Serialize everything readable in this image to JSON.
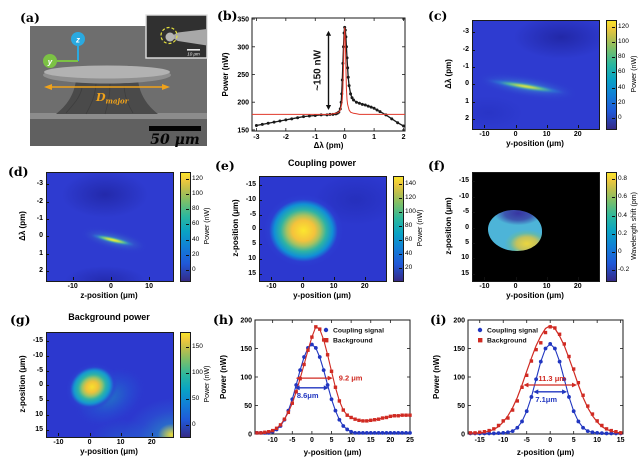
{
  "figure": {
    "background": "#ffffff"
  },
  "colors": {
    "series_blue": "#2136c0",
    "series_red": "#d02a22",
    "fit_red": "#e0392b",
    "data_black": "#1a1a1a",
    "dimension_orange": "#f0a21a",
    "axis_z_blue": "#2aa9e0",
    "axis_y_green": "#7cc244"
  },
  "chart_data": [
    {
      "id": "a",
      "type": "sem-image",
      "label": "(a)",
      "labels": {
        "diameter_main": "D",
        "diameter_sub": "major",
        "scalebar": "50 μm",
        "inset_scalebar": "10 μm",
        "axis_vertical": "z",
        "axis_horizontal": "y"
      },
      "features": "SEM side view of microdisk resonator on pedestal; inset: lensed fiber tip circled"
    },
    {
      "id": "b",
      "type": "scatter",
      "label": "(b)",
      "xlabel": "Δλ (pm)",
      "ylabel": "Power (nW)",
      "xlim": [
        -3.15,
        2.05
      ],
      "ylim": [
        148,
        352
      ],
      "xticks": [
        -3,
        -2,
        -1,
        0,
        1,
        2
      ],
      "yticks": [
        150,
        200,
        250,
        300,
        350
      ],
      "series": [
        {
          "name": "measured",
          "color": "#1a1a1a",
          "marker": "circle",
          "msize": 1.5,
          "width": 1.3,
          "x": [
            -3,
            -2.8,
            -2.6,
            -2.4,
            -2.2,
            -2,
            -1.8,
            -1.6,
            -1.4,
            -1.2,
            -1,
            -0.8,
            -0.6,
            -0.5,
            -0.4,
            -0.3,
            -0.25,
            -0.2,
            -0.15,
            -0.12,
            -0.1,
            -0.08,
            -0.06,
            -0.04,
            -0.02,
            0,
            0.02,
            0.04,
            0.06,
            0.08,
            0.1,
            0.12,
            0.15,
            0.2,
            0.25,
            0.3,
            0.4,
            0.5,
            0.6,
            0.7,
            0.8,
            0.9,
            1,
            1.1,
            1.2,
            1.4,
            1.6,
            1.8,
            2
          ],
          "y": [
            158,
            160,
            162,
            164,
            166,
            168,
            170,
            172,
            174,
            175,
            176,
            177,
            177,
            178,
            178,
            179,
            180,
            182,
            188,
            200,
            215,
            240,
            270,
            300,
            325,
            335,
            330,
            318,
            300,
            280,
            262,
            245,
            230,
            215,
            208,
            204,
            200,
            198,
            196,
            195,
            193,
            191,
            189,
            186,
            183,
            177,
            170,
            163,
            157
          ]
        },
        {
          "name": "lorentzian-fit",
          "color": "#e0392b",
          "marker": null,
          "width": 1,
          "x": [
            -3.15,
            -1,
            -0.5,
            -0.4,
            -0.3,
            -0.2,
            -0.15,
            -0.1,
            -0.08,
            -0.06,
            -0.04,
            -0.02,
            0,
            0.02,
            0.04,
            0.06,
            0.08,
            0.1,
            0.15,
            0.2,
            0.3,
            0.4,
            0.5,
            1,
            2.05
          ],
          "y": [
            178,
            178,
            178,
            179,
            180,
            182,
            186,
            196,
            205,
            225,
            263,
            310,
            335,
            310,
            263,
            225,
            205,
            196,
            186,
            182,
            180,
            179,
            178,
            178,
            178
          ]
        }
      ],
      "annotations": [
        {
          "kind": "varrow",
          "x": -0.55,
          "y1": 186,
          "y2": 329,
          "label": "~150 nW",
          "color": "#111111"
        }
      ]
    },
    {
      "id": "c",
      "type": "heatmap",
      "label": "(c)",
      "xlabel": "y-position (μm)",
      "ylabel": "Δλ (pm)",
      "xlim": [
        -14,
        26.5
      ],
      "ylim": [
        -3.7,
        2.5
      ],
      "xticks": [
        -10,
        0,
        10,
        20
      ],
      "yticks": [
        -3,
        -2,
        -1,
        0,
        1,
        2
      ],
      "colorbar": {
        "label": "Power (nW)",
        "ticks": [
          0,
          20,
          40,
          60,
          80,
          100,
          120
        ],
        "cmin": -13,
        "cmax": 129
      },
      "features": "bright resonance streak from (y≈-8, Δλ≈0) to (y≈15, Δλ≈1), peak ≈130 nW near y≈2; blue background ≈5-15 nW"
    },
    {
      "id": "d",
      "type": "heatmap",
      "label": "(d)",
      "xlabel": "z-position (μm)",
      "ylabel": "Δλ (pm)",
      "xlim": [
        -17,
        16
      ],
      "ylim": [
        -3.7,
        2.5
      ],
      "xticks": [
        -10,
        0,
        10
      ],
      "yticks": [
        -3,
        -2,
        -1,
        0,
        1,
        2
      ],
      "colorbar": {
        "label": "Power (nW)",
        "ticks": [
          0,
          20,
          40,
          60,
          80,
          100,
          120
        ],
        "cmin": -13,
        "cmax": 129
      },
      "features": "short bright streak from (z≈-5, Δλ≈0) to (z≈5, Δλ≈0.8); darker blue blobs above and below"
    },
    {
      "id": "e",
      "type": "heatmap",
      "label": "(e)",
      "title": "Coupling power",
      "xlabel": "y-position (μm)",
      "ylabel": "z-position (μm)",
      "xlim": [
        -14,
        26.5
      ],
      "ylim": [
        -18,
        17
      ],
      "xticks": [
        -10,
        0,
        10,
        20
      ],
      "yticks": [
        -15,
        -10,
        -5,
        0,
        5,
        10,
        15
      ],
      "colorbar": {
        "label": "Power (nW)",
        "ticks": [
          20,
          40,
          60,
          80,
          100,
          120,
          140
        ],
        "cmin": 3,
        "cmax": 152
      },
      "features": "Gaussian coupling spot centered at (0,0), peak ≈155 nW, diameter ≈8 μm"
    },
    {
      "id": "f",
      "type": "heatmap",
      "label": "(f)",
      "xlabel": "y-position (μm)",
      "ylabel": "z-position (μm)",
      "xlim": [
        -14,
        26.5
      ],
      "ylim": [
        -18,
        17
      ],
      "xticks": [
        -10,
        0,
        10,
        20
      ],
      "yticks": [
        -15,
        -10,
        -5,
        0,
        5,
        10,
        15
      ],
      "colorbar": {
        "label": "Wavelength shift (pm)",
        "ticks": [
          -0.2,
          0,
          0.2,
          0.4,
          0.6,
          0.8
        ],
        "cmin": -0.31,
        "cmax": 0.88
      },
      "features": "circular data region ≈16 μm wide centered near (0,0): mostly ≈0.1 pm (cyan), ≈-0.3 pm dip at top, ≈0.8 pm peak at lower right; black outside"
    },
    {
      "id": "g",
      "type": "heatmap",
      "label": "(g)",
      "title": "Background power",
      "xlabel": "y-position (μm)",
      "ylabel": "z-position (μm)",
      "xlim": [
        -14,
        26.5
      ],
      "ylim": [
        -18,
        17
      ],
      "xticks": [
        -10,
        0,
        10,
        20
      ],
      "yticks": [
        -15,
        -10,
        -5,
        0,
        5,
        10,
        15
      ],
      "colorbar": {
        "label": "Power (nW)",
        "ticks": [
          0,
          50,
          100,
          150
        ],
        "cmin": -22,
        "cmax": 178
      },
      "features": "background spot centered (0,0) peak ≈160 nW elongated toward lower right; secondary bright region at bottom-right corner (y≈25, z≈15)"
    },
    {
      "id": "h",
      "type": "line",
      "label": "(h)",
      "xlabel": "y-position (μm)",
      "ylabel": "Power (nW)",
      "xlim": [
        -14.5,
        25
      ],
      "ylim": [
        0,
        200
      ],
      "xticks": [
        -10,
        -5,
        0,
        5,
        10,
        15,
        20,
        25
      ],
      "yticks": [
        0,
        50,
        100,
        150,
        200
      ],
      "legend": {
        "pos": "tr",
        "entries": [
          {
            "label": "Coupling signal",
            "color": "#2136c0",
            "marker": "circle"
          },
          {
            "label": "Background",
            "color": "#d02a22",
            "marker": "square"
          }
        ]
      },
      "series": [
        {
          "name": "coupling-signal",
          "color": "#2136c0",
          "marker": "circle",
          "msize": 1.9,
          "width": 1.1,
          "x": [
            -14,
            -13,
            -12,
            -11,
            -10,
            -9,
            -8,
            -7,
            -6,
            -5,
            -4,
            -3,
            -2,
            -1,
            0,
            1,
            2,
            3,
            4,
            5,
            6,
            7,
            8,
            9,
            10,
            11,
            12,
            13,
            14,
            15,
            16,
            17,
            18,
            19,
            20,
            21,
            22,
            23,
            24,
            25
          ],
          "y": [
            2,
            2,
            2,
            2,
            4,
            8,
            14,
            25,
            41,
            61,
            86,
            112,
            135,
            151,
            157,
            151,
            135,
            112,
            86,
            61,
            41,
            25,
            14,
            8,
            4,
            2,
            2,
            2,
            2,
            2,
            2,
            2,
            2,
            2,
            2,
            2,
            2,
            2,
            2,
            2
          ]
        },
        {
          "name": "background",
          "color": "#d02a22",
          "marker": "square",
          "msize": 1.7,
          "width": 1.1,
          "x": [
            -14,
            -13,
            -12,
            -11,
            -10,
            -9,
            -8,
            -7,
            -6,
            -5,
            -4,
            -3,
            -2,
            -1,
            0,
            1,
            2,
            3,
            4,
            5,
            6,
            7,
            8,
            9,
            10,
            11,
            12,
            13,
            14,
            15,
            16,
            17,
            18,
            19,
            20,
            21,
            22,
            23,
            24,
            25
          ],
          "y": [
            2,
            2,
            3,
            4,
            6,
            10,
            16,
            26,
            38,
            54,
            74,
            97,
            122,
            147,
            170,
            188,
            184,
            165,
            139,
            110,
            82,
            58,
            42,
            33,
            29,
            26,
            24,
            23,
            23,
            24,
            25,
            26,
            28,
            29,
            31,
            32,
            32,
            33,
            33,
            33
          ]
        }
      ],
      "annotations": [
        {
          "kind": "harrow",
          "y": 98,
          "x1": -4.1,
          "x2": 5.3,
          "label": "9.2 μm",
          "color": "#d02a22",
          "label_pos": "right"
        },
        {
          "kind": "harrow",
          "y": 81,
          "x1": -4.4,
          "x2": 4.3,
          "label": "8.6μm",
          "color": "#2136c0",
          "label_pos": "below"
        }
      ]
    },
    {
      "id": "i",
      "type": "line",
      "label": "(i)",
      "xlabel": "z-position (μm)",
      "ylabel": "Power (nW)",
      "xlim": [
        -17.5,
        15.5
      ],
      "ylim": [
        0,
        200
      ],
      "xticks": [
        -15,
        -10,
        -5,
        0,
        5,
        10,
        15
      ],
      "yticks": [
        0,
        50,
        100,
        150,
        200
      ],
      "legend": {
        "pos": "tl",
        "entries": [
          {
            "label": "Coupling signal",
            "color": "#2136c0",
            "marker": "circle"
          },
          {
            "label": "Background",
            "color": "#d02a22",
            "marker": "square"
          }
        ]
      },
      "series": [
        {
          "name": "coupling-signal",
          "color": "#2136c0",
          "marker": "circle",
          "msize": 1.9,
          "width": 1.1,
          "x": [
            -17,
            -16,
            -15,
            -14,
            -13,
            -12,
            -11,
            -10,
            -9,
            -8,
            -7,
            -6,
            -5,
            -4,
            -3,
            -2,
            -1,
            0,
            1,
            2,
            3,
            4,
            5,
            6,
            7,
            8,
            9,
            10,
            11,
            12,
            13,
            14,
            15
          ],
          "y": [
            1,
            1,
            1,
            1,
            1,
            1,
            1.5,
            2,
            3,
            5,
            11,
            22,
            40,
            65,
            96,
            127,
            150,
            158,
            150,
            127,
            96,
            65,
            40,
            22,
            11,
            5,
            3,
            2,
            1.5,
            1,
            1,
            1,
            1
          ]
        },
        {
          "name": "background",
          "color": "#d02a22",
          "marker": "square",
          "msize": 1.7,
          "width": 1.2,
          "x": [
            -17,
            -16,
            -15,
            -14,
            -13,
            -12,
            -11,
            -10,
            -9,
            -8,
            -7,
            -6,
            -5,
            -4,
            -3,
            -2,
            -1,
            0,
            1,
            2,
            3,
            4,
            5,
            6,
            7,
            8,
            9,
            10,
            11,
            12,
            13,
            14,
            15
          ],
          "y": [
            2,
            2,
            2,
            3,
            5,
            8,
            13,
            21,
            32,
            46,
            64,
            86,
            110,
            133,
            155,
            172,
            185,
            190,
            185,
            172,
            155,
            133,
            110,
            86,
            64,
            46,
            32,
            21,
            13,
            8,
            5,
            3,
            2
          ],
          "y_markers": [
            2,
            2,
            3,
            4,
            6,
            9,
            15,
            23,
            28,
            42,
            58,
            82,
            103,
            128,
            148,
            160,
            178,
            188,
            186,
            175,
            158,
            136,
            114,
            90,
            68,
            49,
            35,
            23,
            15,
            9,
            6,
            4,
            2
          ]
        }
      ],
      "annotations": [
        {
          "kind": "harrow",
          "y": 86,
          "x1": -5.7,
          "x2": 5.7,
          "label": "11.3 μm",
          "color": "#d02a22",
          "label_pos": "above"
        },
        {
          "kind": "harrow",
          "y": 74,
          "x1": -3.6,
          "x2": 3.6,
          "label": "7.1μm",
          "color": "#2136c0",
          "label_pos": "below"
        }
      ]
    }
  ]
}
